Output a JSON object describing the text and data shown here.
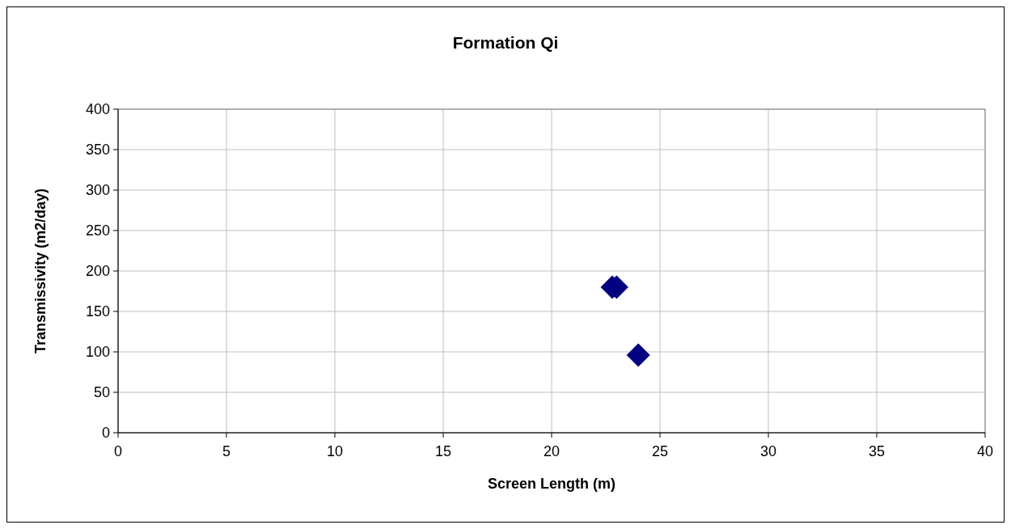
{
  "chart_data": {
    "type": "scatter",
    "title": "Formation Qi",
    "xlabel": "Screen Length (m)",
    "ylabel": "Transmissivity (m2/day)",
    "x": [
      22.8,
      23.0,
      24.0
    ],
    "series": [
      {
        "color": "#000080",
        "values": [
          180,
          180,
          96
        ]
      }
    ],
    "xlim": [
      0,
      40
    ],
    "xticks": [
      0,
      5,
      10,
      15,
      20,
      25,
      30,
      35,
      40
    ],
    "ylim": [
      0,
      400
    ],
    "yticks": [
      0,
      50,
      100,
      150,
      200,
      250,
      300,
      350,
      400
    ],
    "grid": true,
    "marker": "diamond"
  }
}
